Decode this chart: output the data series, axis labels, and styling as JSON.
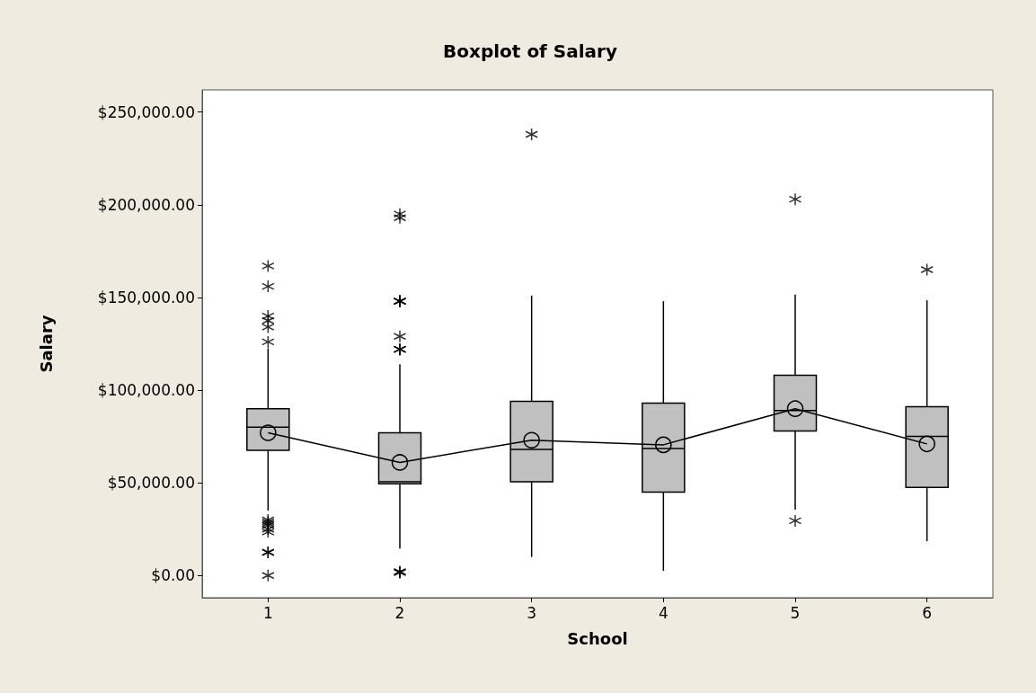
{
  "chart_data": {
    "type": "box",
    "title": "Boxplot of Salary",
    "xlabel": "School",
    "ylabel": "Salary",
    "categories": [
      "1",
      "2",
      "3",
      "4",
      "5",
      "6"
    ],
    "ylim": [
      -12000,
      262000
    ],
    "yticks": [
      {
        "value": 0,
        "label": "$0.00"
      },
      {
        "value": 50000,
        "label": "$50,000.00"
      },
      {
        "value": 100000,
        "label": "$100,000.00"
      },
      {
        "value": 150000,
        "label": "$150,000.00"
      },
      {
        "value": 200000,
        "label": "$200,000.00"
      },
      {
        "value": 250000,
        "label": "$250,000.00"
      }
    ],
    "series": [
      {
        "type": "box",
        "color": "#c0c0c0",
        "boxes": [
          {
            "low": 35000,
            "q1": 67500,
            "median": 80000,
            "q3": 90000,
            "high": 122500,
            "outliers": [
              167000,
              156000,
              140000,
              137500,
              134000,
              126000,
              30000,
              29000,
              28000,
              27000,
              25000,
              23500,
              12500,
              12500,
              0
            ]
          },
          {
            "low": 14500,
            "q1": 49500,
            "median": 50500,
            "q3": 77000,
            "high": 114000,
            "outliers": [
              195000,
              193000,
              148000,
              148000,
              148000,
              148000,
              129000,
              122000,
              122000,
              122000,
              2000,
              2000,
              1500
            ]
          },
          {
            "low": 10000,
            "q1": 50500,
            "median": 68000,
            "q3": 94000,
            "high": 151000,
            "outliers": [
              238000
            ]
          },
          {
            "low": 2500,
            "q1": 45000,
            "median": 68500,
            "q3": 93000,
            "high": 148000
          },
          {
            "low": 35500,
            "q1": 78000,
            "median": 89000,
            "q3": 108000,
            "high": 151500,
            "outliers": [
              203000,
              29500
            ]
          },
          {
            "low": 18500,
            "q1": 47500,
            "median": 75000,
            "q3": 91000,
            "high": 148500,
            "outliers": [
              165000
            ]
          }
        ]
      },
      {
        "type": "line",
        "color": "#000000",
        "marker": "circle",
        "values": [
          77000,
          61000,
          73000,
          70500,
          90000,
          71000
        ]
      }
    ]
  }
}
